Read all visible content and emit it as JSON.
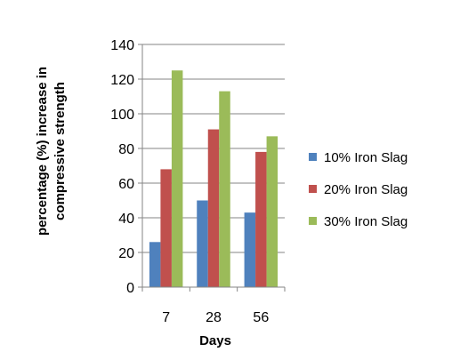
{
  "chart_data": {
    "type": "bar",
    "categories": [
      "7",
      "28",
      "56"
    ],
    "series": [
      {
        "name": "10% Iron Slag",
        "values": [
          26,
          50,
          43
        ],
        "color": "#4F81BD"
      },
      {
        "name": "20% Iron Slag",
        "values": [
          68,
          91,
          78
        ],
        "color": "#C0504D"
      },
      {
        "name": "30% Iron Slag",
        "values": [
          125,
          113,
          87
        ],
        "color": "#9BBB59"
      }
    ],
    "xlabel": "Days",
    "ylabel_lines": [
      "percentage (%) increase in",
      "compressive strength"
    ],
    "ylim": [
      0,
      140
    ],
    "yticks": [
      0,
      20,
      40,
      60,
      80,
      100,
      120,
      140
    ],
    "grid": true,
    "legend_position": "right"
  }
}
